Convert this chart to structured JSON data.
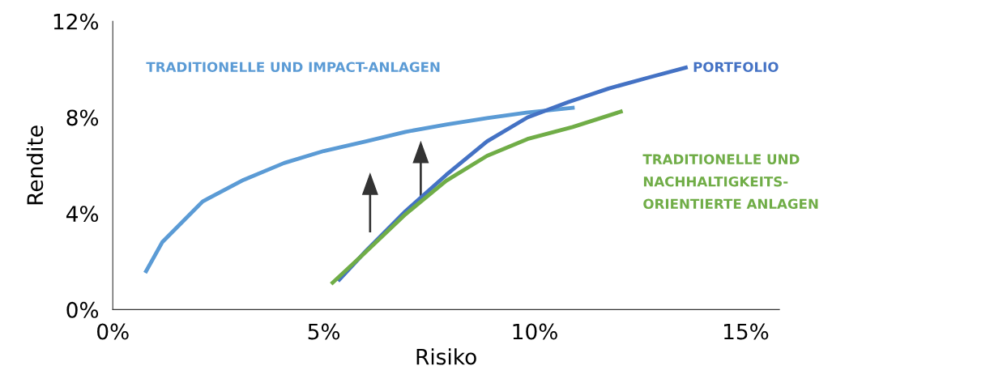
{
  "chart_data": {
    "type": "line",
    "xlabel": "Risiko",
    "ylabel": "Rendite",
    "xlim": [
      0,
      15.8
    ],
    "ylim": [
      0,
      12
    ],
    "xticks": [
      {
        "value": 0,
        "label": "0%"
      },
      {
        "value": 5,
        "label": "5%"
      },
      {
        "value": 10,
        "label": "10%"
      },
      {
        "value": 15,
        "label": "15%"
      }
    ],
    "yticks": [
      {
        "value": 0,
        "label": "0%"
      },
      {
        "value": 4,
        "label": "4%"
      },
      {
        "value": 8,
        "label": "8%"
      },
      {
        "value": 12,
        "label": "12%"
      }
    ],
    "grid": false,
    "legend": false,
    "marker": "none",
    "line_style": "solid",
    "series": [
      {
        "name": "TRADITIONELLE UND IMPACT-ANLAGEN",
        "color": "#5b9bd5",
        "x": [
          0.79,
          1.17,
          2.13,
          3.1,
          4.06,
          5.0,
          6.0,
          6.94,
          7.9,
          8.87,
          9.8,
          10.9
        ],
        "values": [
          1.6,
          2.8,
          4.5,
          5.4,
          6.1,
          6.6,
          7.0,
          7.4,
          7.7,
          7.97,
          8.2,
          8.4
        ]
      },
      {
        "name": "PORTFOLIO",
        "color": "#4472c4",
        "x": [
          5.37,
          6.0,
          6.94,
          7.9,
          8.87,
          9.83,
          10.8,
          11.75,
          12.7,
          13.58
        ],
        "values": [
          1.25,
          2.44,
          4.1,
          5.6,
          7.0,
          8.0,
          8.64,
          9.2,
          9.66,
          10.07
        ]
      },
      {
        "name": "TRADITIONELLE UND\nNACHHALTIGKEITS-\nORIENTIERTE ANLAGEN",
        "color": "#70ad47",
        "x": [
          5.21,
          5.98,
          6.94,
          7.9,
          8.87,
          9.83,
          10.9,
          12.04
        ],
        "values": [
          1.12,
          2.37,
          3.97,
          5.36,
          6.4,
          7.1,
          7.6,
          8.24
        ]
      }
    ]
  }
}
